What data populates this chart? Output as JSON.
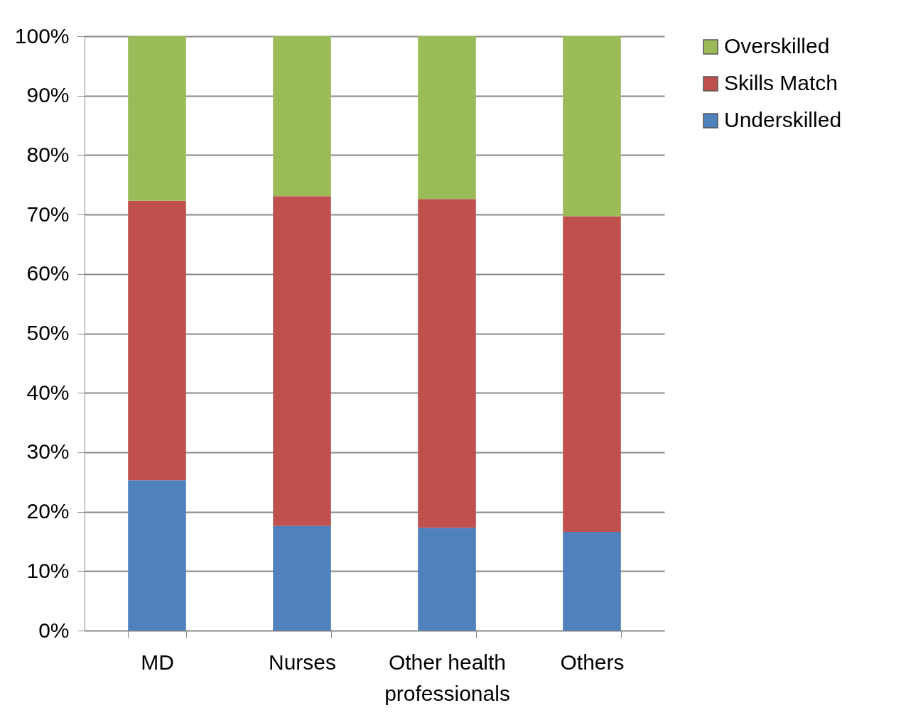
{
  "chart_data": {
    "type": "bar",
    "stacked": true,
    "categories": [
      "MD",
      "Nurses",
      "Other health professionals",
      "Others"
    ],
    "series": [
      {
        "name": "Underskilled",
        "color": "#4f81bd",
        "values": [
          25.3,
          17.6,
          17.3,
          16.6
        ]
      },
      {
        "name": "Skills Match",
        "color": "#c0504d",
        "values": [
          47.0,
          55.5,
          55.3,
          53.1
        ]
      },
      {
        "name": "Overskilled",
        "color": "#9bbb59",
        "values": [
          27.7,
          26.9,
          27.4,
          30.3
        ]
      }
    ],
    "ylim": [
      0,
      100
    ],
    "yticks": [
      {
        "value": 0,
        "label": "0%"
      },
      {
        "value": 10,
        "label": "10%"
      },
      {
        "value": 20,
        "label": "20%"
      },
      {
        "value": 30,
        "label": "30%"
      },
      {
        "value": 40,
        "label": "40%"
      },
      {
        "value": 50,
        "label": "50%"
      },
      {
        "value": 60,
        "label": "60%"
      },
      {
        "value": 70,
        "label": "70%"
      },
      {
        "value": 80,
        "label": "80%"
      },
      {
        "value": 90,
        "label": "90%"
      },
      {
        "value": 100,
        "label": "100%"
      }
    ],
    "grid": "y",
    "legend": "right"
  }
}
